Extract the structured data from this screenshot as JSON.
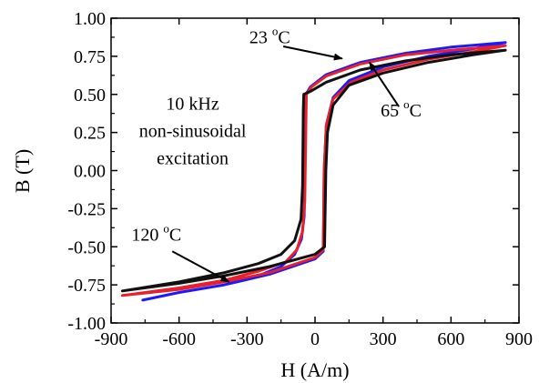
{
  "chart_data": {
    "type": "line",
    "xlabel": "H (A/m)",
    "ylabel": "B (T)",
    "xlim": [
      -900,
      900
    ],
    "ylim": [
      -1.0,
      1.0
    ],
    "x_ticks": [
      -900,
      -600,
      -300,
      0,
      300,
      600,
      900
    ],
    "x_tick_labels": [
      "-900",
      "-600",
      "-300",
      "0",
      "300",
      "600",
      "900"
    ],
    "y_ticks": [
      1.0,
      0.75,
      0.5,
      0.25,
      0.0,
      -0.25,
      -0.5,
      -0.75,
      -1.0
    ],
    "y_tick_labels": [
      "1.00",
      "0.75",
      "0.50",
      "0.25",
      "0.00",
      "-0.25",
      "-0.50",
      "-0.75",
      "-1.00"
    ],
    "grid": false,
    "series": [
      {
        "color": "#1a1aff",
        "upper": [
          [
            -760,
            -0.85
          ],
          [
            -600,
            -0.8
          ],
          [
            -400,
            -0.75
          ],
          [
            -250,
            -0.69
          ],
          [
            -150,
            -0.63
          ],
          [
            -90,
            -0.55
          ],
          [
            -60,
            -0.45
          ],
          [
            -48,
            -0.3
          ],
          [
            -44,
            0.0
          ],
          [
            -42,
            0.3
          ],
          [
            -40,
            0.5
          ],
          [
            -20,
            0.55
          ],
          [
            50,
            0.63
          ],
          [
            200,
            0.71
          ],
          [
            400,
            0.77
          ],
          [
            600,
            0.81
          ],
          [
            840,
            0.84
          ]
        ],
        "lower": [
          [
            840,
            0.84
          ],
          [
            700,
            0.8
          ],
          [
            500,
            0.75
          ],
          [
            300,
            0.68
          ],
          [
            150,
            0.59
          ],
          [
            80,
            0.48
          ],
          [
            50,
            0.3
          ],
          [
            40,
            0.0
          ],
          [
            38,
            -0.3
          ],
          [
            36,
            -0.53
          ],
          [
            0,
            -0.58
          ],
          [
            -200,
            -0.68
          ],
          [
            -400,
            -0.75
          ],
          [
            -600,
            -0.8
          ],
          [
            -760,
            -0.85
          ]
        ]
      },
      {
        "color": "#e8202a",
        "upper": [
          [
            -850,
            -0.82
          ],
          [
            -600,
            -0.77
          ],
          [
            -400,
            -0.72
          ],
          [
            -250,
            -0.66
          ],
          [
            -130,
            -0.6
          ],
          [
            -80,
            -0.52
          ],
          [
            -55,
            -0.4
          ],
          [
            -45,
            -0.2
          ],
          [
            -42,
            0.1
          ],
          [
            -40,
            0.3
          ],
          [
            -38,
            0.5
          ],
          [
            -15,
            0.55
          ],
          [
            50,
            0.62
          ],
          [
            200,
            0.7
          ],
          [
            400,
            0.76
          ],
          [
            600,
            0.79
          ],
          [
            840,
            0.82
          ]
        ],
        "lower": [
          [
            840,
            0.82
          ],
          [
            700,
            0.78
          ],
          [
            500,
            0.73
          ],
          [
            300,
            0.66
          ],
          [
            160,
            0.58
          ],
          [
            80,
            0.47
          ],
          [
            50,
            0.3
          ],
          [
            40,
            0.0
          ],
          [
            38,
            -0.3
          ],
          [
            36,
            -0.52
          ],
          [
            0,
            -0.57
          ],
          [
            -200,
            -0.67
          ],
          [
            -400,
            -0.73
          ],
          [
            -600,
            -0.78
          ],
          [
            -850,
            -0.82
          ]
        ]
      },
      {
        "color": "#111111",
        "upper": [
          [
            -850,
            -0.79
          ],
          [
            -600,
            -0.73
          ],
          [
            -400,
            -0.67
          ],
          [
            -250,
            -0.61
          ],
          [
            -150,
            -0.55
          ],
          [
            -90,
            -0.46
          ],
          [
            -62,
            -0.32
          ],
          [
            -55,
            -0.1
          ],
          [
            -53,
            0.2
          ],
          [
            -52,
            0.4
          ],
          [
            -50,
            0.5
          ],
          [
            -20,
            0.52
          ],
          [
            50,
            0.58
          ],
          [
            200,
            0.66
          ],
          [
            400,
            0.72
          ],
          [
            600,
            0.76
          ],
          [
            840,
            0.79
          ]
        ],
        "lower": [
          [
            840,
            0.79
          ],
          [
            700,
            0.76
          ],
          [
            500,
            0.71
          ],
          [
            300,
            0.64
          ],
          [
            150,
            0.56
          ],
          [
            80,
            0.43
          ],
          [
            55,
            0.25
          ],
          [
            48,
            0.0
          ],
          [
            45,
            -0.25
          ],
          [
            42,
            -0.5
          ],
          [
            0,
            -0.55
          ],
          [
            -200,
            -0.63
          ],
          [
            -400,
            -0.69
          ],
          [
            -600,
            -0.74
          ],
          [
            -850,
            -0.79
          ]
        ]
      }
    ],
    "annotations": [
      {
        "text_main": "23 ",
        "text_sup": "o",
        "text_tail": "C",
        "text_pos": [
          -290,
          0.835
        ],
        "arrow_from": [
          -140,
          0.815
        ],
        "arrow_to": [
          120,
          0.735
        ]
      },
      {
        "text_main": "65 ",
        "text_sup": "o",
        "text_tail": "C",
        "text_pos": [
          290,
          0.355
        ],
        "arrow_from": [
          370,
          0.42
        ],
        "arrow_to": [
          240,
          0.71
        ]
      },
      {
        "text_main": "120 ",
        "text_sup": "o",
        "text_tail": "C",
        "text_pos": [
          -810,
          -0.46
        ],
        "arrow_from": [
          -630,
          -0.53
        ],
        "arrow_to": [
          -380,
          -0.73
        ]
      }
    ],
    "text_block": {
      "lines": [
        "10 kHz",
        "non-sinusoidal",
        "excitation"
      ],
      "pos": [
        -540,
        0.4
      ]
    }
  }
}
